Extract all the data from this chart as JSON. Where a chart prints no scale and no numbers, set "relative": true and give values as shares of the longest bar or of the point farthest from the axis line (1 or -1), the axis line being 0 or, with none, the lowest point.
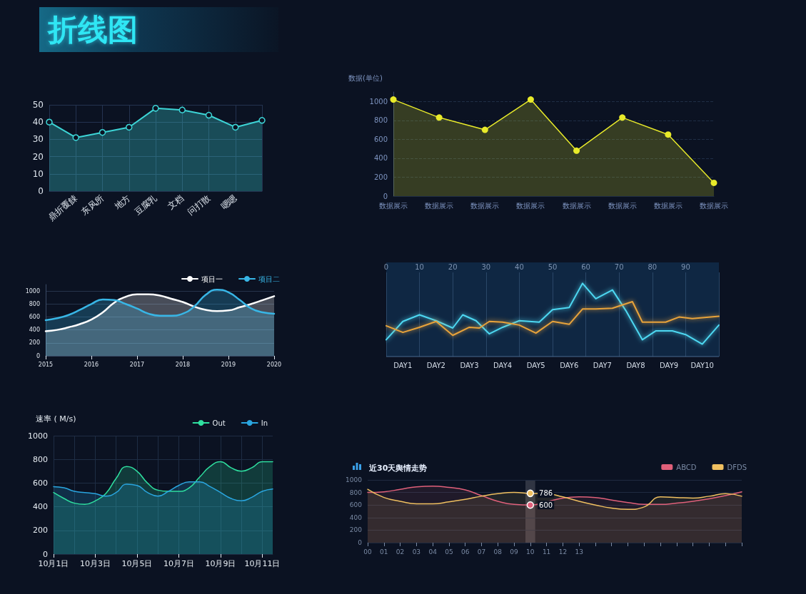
{
  "chart_data": [
    {
      "type": "area",
      "title": "折线图",
      "categories": [
        null,
        "鼎折覆餗",
        "东风所",
        "地方",
        "豆腐乳",
        "文档",
        "问打散",
        "嗯嗯",
        null
      ],
      "series": [
        {
          "color": "#3dd5d6",
          "values": [
            40,
            31,
            34,
            37,
            48,
            47,
            44,
            37,
            41
          ]
        }
      ],
      "ylim": [
        0,
        50
      ],
      "yticks": [
        0,
        10,
        20,
        30,
        40,
        50
      ],
      "grid": true,
      "marker": "circle"
    },
    {
      "type": "area",
      "ylabel": "数据(单位)",
      "categories": [
        "数据展示",
        "数据展示",
        "数据展示",
        "数据展示",
        "数据展示",
        "数据展示",
        "数据展示",
        "数据展示"
      ],
      "series": [
        {
          "color": "#e8ea2a",
          "values": [
            1020,
            830,
            700,
            1020,
            480,
            830,
            650,
            140
          ]
        }
      ],
      "ylim": [
        0,
        1100
      ],
      "yticks": [
        0,
        200,
        400,
        600,
        800,
        1000
      ],
      "grid": "y",
      "marker": "circle"
    },
    {
      "type": "area",
      "x": [
        2015,
        2015.25,
        2015.5,
        2015.75,
        2016,
        2016.25,
        2016.5,
        2016.75,
        2017,
        2017.25,
        2017.5,
        2017.75,
        2018,
        2018.25,
        2018.5,
        2018.75,
        2019,
        2019.25,
        2019.5,
        2019.75,
        2020
      ],
      "series": [
        {
          "name": "项目一",
          "color": "#ffffff",
          "values": [
            380,
            400,
            440,
            490,
            560,
            670,
            820,
            910,
            950,
            950,
            930,
            880,
            830,
            760,
            710,
            690,
            700,
            750,
            800,
            860,
            920
          ]
        },
        {
          "name": "项目二",
          "color": "#38b6e6",
          "values": [
            550,
            580,
            630,
            710,
            800,
            870,
            860,
            800,
            730,
            650,
            620,
            620,
            650,
            760,
            940,
            1020,
            980,
            860,
            730,
            670,
            650
          ]
        }
      ],
      "xlim": [
        2015,
        2020
      ],
      "xticks": [
        2015,
        2016,
        2017,
        2018,
        2019,
        2020
      ],
      "ylim": [
        0,
        1100
      ],
      "yticks": [
        0,
        200,
        400,
        600,
        800,
        1000
      ],
      "grid": "y",
      "legend": "top right"
    },
    {
      "type": "line",
      "relative": true,
      "xlim": [
        0,
        100
      ],
      "xticks": [
        0,
        10,
        20,
        30,
        40,
        50,
        60,
        70,
        80,
        90,
        {
          "value": 100,
          "label": null
        }
      ],
      "annotations": [
        "DAY1",
        "DAY2",
        "DAY3",
        "DAY4",
        "DAY5",
        "DAY6",
        "DAY7",
        "DAY8",
        "DAY9",
        "DAY10"
      ],
      "series": [
        {
          "color": "#4dd8f2",
          "x": [
            0,
            5,
            10,
            15,
            20,
            23,
            27,
            31,
            35,
            40,
            46,
            50,
            55,
            59,
            63,
            68,
            72,
            77,
            81,
            86,
            90,
            95,
            100
          ],
          "values": [
            0.23,
            0.48,
            0.57,
            0.49,
            0.39,
            0.57,
            0.49,
            0.31,
            0.4,
            0.49,
            0.47,
            0.64,
            0.67,
            1,
            0.79,
            0.91,
            0.63,
            0.23,
            0.35,
            0.35,
            0.3,
            0.17,
            0.43
          ]
        },
        {
          "color": "#e8a33a",
          "x": [
            0,
            5,
            10,
            15,
            20,
            25,
            28,
            31,
            35,
            40,
            45,
            50,
            55,
            59,
            63,
            68,
            74,
            77,
            81,
            84,
            88,
            92,
            100
          ],
          "values": [
            0.42,
            0.33,
            0.4,
            0.48,
            0.29,
            0.4,
            0.39,
            0.48,
            0.47,
            0.43,
            0.32,
            0.48,
            0.44,
            0.65,
            0.65,
            0.66,
            0.75,
            0.47,
            0.47,
            0.47,
            0.54,
            0.52,
            0.55
          ]
        }
      ],
      "grid": "x"
    },
    {
      "type": "area",
      "ylabel": "速率 ( M/s)",
      "categories": [
        "10月1日",
        null,
        null,
        null,
        "10月3日",
        null,
        null,
        null,
        "10月5日",
        null,
        null,
        null,
        "10月7日",
        null,
        null,
        null,
        "10月9日",
        null,
        null,
        null,
        "10月11日",
        null
      ],
      "series": [
        {
          "name": "Out",
          "color": "#2fe0a0",
          "values": [
            520,
            470,
            430,
            420,
            450,
            510,
            640,
            740,
            700,
            600,
            540,
            530,
            530,
            560,
            650,
            740,
            780,
            730,
            700,
            730,
            780,
            780
          ]
        },
        {
          "name": "In",
          "color": "#2aa6e0",
          "values": [
            570,
            560,
            530,
            520,
            510,
            490,
            520,
            590,
            580,
            520,
            490,
            530,
            580,
            610,
            610,
            570,
            520,
            470,
            450,
            480,
            530,
            550
          ]
        }
      ],
      "ylim": [
        0,
        1000
      ],
      "yticks": [
        0,
        200,
        400,
        600,
        800,
        1000
      ],
      "grid": true,
      "legend": "top right"
    },
    {
      "type": "area",
      "title": "近30天舆情走势",
      "categories": [
        "00",
        "01",
        "02",
        "03",
        "04",
        "05",
        "06",
        "07",
        "08",
        "09",
        "10",
        "11",
        "12",
        "13",
        null,
        null,
        null,
        null,
        null,
        null,
        null,
        null,
        null,
        null
      ],
      "series": [
        {
          "name": "ABCD",
          "color": "#e0607a",
          "values": [
            800,
            810,
            850,
            890,
            900,
            880,
            840,
            750,
            660,
            610,
            600,
            650,
            710,
            730,
            720,
            680,
            640,
            610,
            610,
            630,
            660,
            700,
            750,
            810
          ],
          "value_labels": [
            null,
            null,
            null,
            null,
            null,
            null,
            null,
            null,
            null,
            null,
            "600",
            null,
            null,
            null,
            null,
            null,
            null,
            null,
            null,
            null,
            null,
            null,
            null,
            null
          ]
        },
        {
          "name": "DFDS",
          "color": "#f0c060",
          "values": [
            850,
            720,
            660,
            620,
            620,
            650,
            690,
            740,
            780,
            800,
            786,
            780,
            730,
            660,
            600,
            550,
            530,
            570,
            730,
            720,
            710,
            740,
            780,
            740
          ],
          "value_labels": [
            null,
            null,
            null,
            null,
            null,
            null,
            null,
            null,
            null,
            null,
            "786",
            null,
            null,
            null,
            null,
            null,
            null,
            null,
            null,
            null,
            null,
            null,
            null,
            null
          ]
        }
      ],
      "ylim": [
        0,
        1000
      ],
      "yticks": [
        0,
        200,
        400,
        600,
        800,
        1000
      ],
      "grid": "y",
      "legend": "top right",
      "bands": [
        {
          "axis": "x",
          "from": "10",
          "to": "10",
          "color": "#3a3e4c"
        }
      ]
    }
  ]
}
